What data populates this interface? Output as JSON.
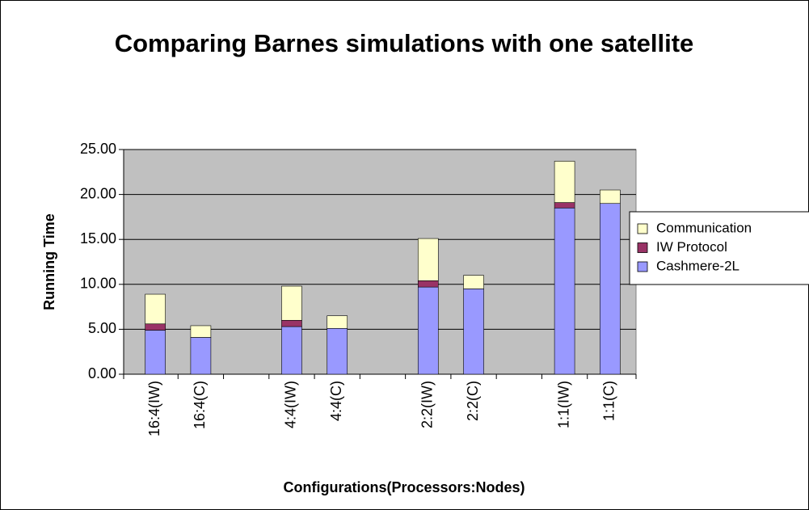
{
  "chart_data": {
    "type": "stacked_bar",
    "title": "Comparing Barnes simulations with one satellite",
    "x_label": "Configurations(Processors:Nodes)",
    "y_label": "Running Time",
    "categories": [
      "16:4(IW)",
      "16:4(C)",
      null,
      "4:4(IW)",
      "4:4(C)",
      null,
      "2:2(IW)",
      "2:2(C)",
      null,
      "1:1(IW)",
      "1:1(C)"
    ],
    "series": [
      {
        "name": "Cashmere-2L",
        "color": "#9999ff",
        "values": [
          4.9,
          4.1,
          null,
          5.3,
          5.1,
          null,
          9.7,
          9.5,
          null,
          18.5,
          19.0
        ]
      },
      {
        "name": "IW Protocol",
        "color": "#993366",
        "values": [
          0.7,
          0,
          null,
          0.7,
          0,
          null,
          0.7,
          0,
          null,
          0.6,
          0
        ]
      },
      {
        "name": "Communication",
        "color": "#ffffcc",
        "values": [
          3.3,
          1.3,
          null,
          3.8,
          1.4,
          null,
          4.7,
          1.5,
          null,
          4.6,
          1.5
        ]
      }
    ],
    "ylim": [
      0,
      25
    ],
    "yticks": [
      {
        "value": 0,
        "label": "0.00"
      },
      {
        "value": 5,
        "label": "5.00"
      },
      {
        "value": 10,
        "label": "10.00"
      },
      {
        "value": 15,
        "label": "15.00"
      },
      {
        "value": 20,
        "label": "20.00"
      },
      {
        "value": 25,
        "label": "25.00"
      }
    ],
    "grid": true,
    "legend": "right",
    "plot_background": "#c0c0c0"
  }
}
